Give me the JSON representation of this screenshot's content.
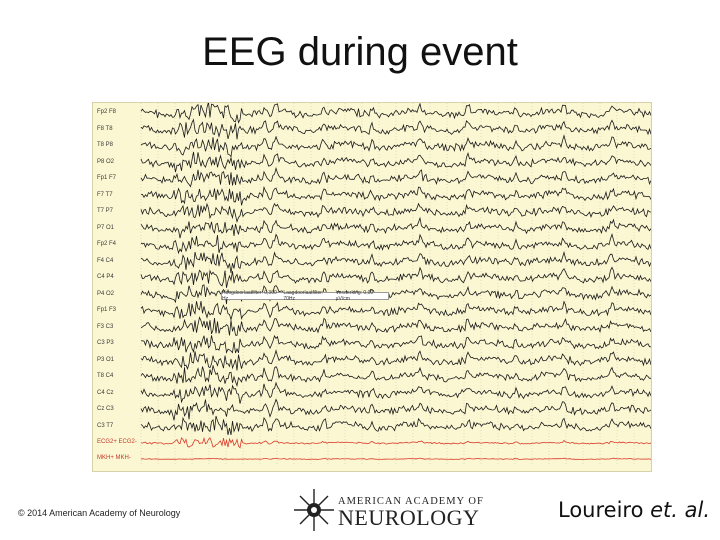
{
  "slide": {
    "title": "EEG during event",
    "copyright": "© 2014 American Academy of Neurology",
    "logo": {
      "line1": "AMERICAN ACADEMY OF",
      "line2": "NEUROLOGY",
      "icon": "aan-star-logo-icon"
    },
    "citation": {
      "author": "Loureiro",
      "suffix": "et. al."
    }
  },
  "eeg": {
    "channels": [
      "Fp2 F8",
      "F8 T8",
      "T8 P8",
      "P8 O2",
      "Fp1 F7",
      "F7 T7",
      "T7 P7",
      "P7 O1",
      "Fp2 F4",
      "F4 C4",
      "C4 P4",
      "P4 O2",
      "Fp1 F3",
      "F3 C3",
      "C3 P3",
      "P3 O1",
      "T8 C4",
      "C4 Cz",
      "Cz C3",
      "C3 T7"
    ],
    "ecg_label": "ECG2+ ECG2-",
    "misc_label": "MKH+ MKH-",
    "filter_bar": [
      "Hoogdoorlaatfilter: 0,300 Hz",
      "Laagdoorlaatfilter: 70Hz",
      "Versterking: 0,00 µV/cm"
    ],
    "trace_color": "#1a1a1a",
    "ecg_color": "#d93a2b",
    "grid_color": "#b9b49a"
  }
}
